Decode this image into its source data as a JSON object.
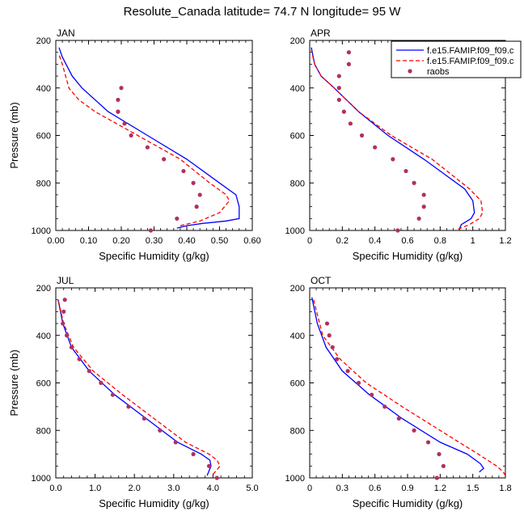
{
  "figure": {
    "title": "Resolute_Canada  latitude= 74.7 N longitude= 95 W"
  },
  "legend": {
    "placement": "top-right of APR panel",
    "items": [
      {
        "label": "f.e15.FAMIP.f09_f09.c",
        "color": "#0000ff",
        "style": "solid"
      },
      {
        "label": "f.e15.FAMIP.f09_f09.c",
        "color": "#ff0000",
        "style": "dashed"
      },
      {
        "label": "raobs",
        "color": "#b03060",
        "style": "marker"
      }
    ]
  },
  "chart_data": [
    {
      "type": "line",
      "panel_label": "JAN",
      "xlabel": "Specific Humidity (g/kg)",
      "ylabel": "Pressure (mb)",
      "xlim": [
        0,
        0.6
      ],
      "xticks": [
        "0.00",
        "0.10",
        "0.20",
        "0.30",
        "0.40",
        "0.50",
        "0.60"
      ],
      "xtick_values": [
        0,
        0.1,
        0.2,
        0.3,
        0.4,
        0.5,
        0.6
      ],
      "ylim": [
        1000,
        200
      ],
      "yticks": [
        200,
        400,
        600,
        800,
        1000
      ],
      "series": [
        {
          "key": "blue",
          "color": "#0000ff",
          "style": "solid",
          "x": [
            0.37,
            0.4,
            0.45,
            0.52,
            0.56,
            0.56,
            0.55,
            0.5,
            0.4,
            0.28,
            0.16,
            0.08,
            0.05,
            0.02,
            0.01
          ],
          "y": [
            990,
            980,
            970,
            960,
            950,
            900,
            850,
            800,
            700,
            600,
            500,
            400,
            350,
            270,
            230
          ]
        },
        {
          "key": "red",
          "color": "#ff0000",
          "style": "dashed",
          "x": [
            0.38,
            0.44,
            0.5,
            0.53,
            0.52,
            0.47,
            0.38,
            0.25,
            0.12,
            0.07,
            0.04,
            0.02,
            0.01
          ],
          "y": [
            980,
            960,
            925,
            875,
            850,
            800,
            700,
            600,
            500,
            450,
            400,
            300,
            260
          ]
        },
        {
          "key": "raobs",
          "color": "#b03060",
          "style": "marker",
          "x": [
            0.2,
            0.19,
            0.19,
            0.19,
            0.21,
            0.23,
            0.28,
            0.33,
            0.39,
            0.42,
            0.44,
            0.43,
            0.37,
            0.29
          ],
          "y": [
            400,
            450,
            500,
            500,
            550,
            600,
            650,
            700,
            750,
            800,
            850,
            900,
            950,
            1000
          ]
        }
      ]
    },
    {
      "type": "line",
      "panel_label": "APR",
      "xlabel": "Specific Humidity (g/kg)",
      "ylabel": "",
      "xlim": [
        0,
        1.2
      ],
      "xticks": [
        "0",
        "0.2",
        "0.4",
        "0.6",
        "0.8",
        "1",
        "1.2"
      ],
      "xtick_values": [
        0,
        0.2,
        0.4,
        0.6,
        0.8,
        1.0,
        1.2
      ],
      "ylim": [
        1000,
        200
      ],
      "yticks": [
        200,
        400,
        600,
        800,
        1000
      ],
      "series": [
        {
          "key": "blue",
          "color": "#0000ff",
          "style": "solid",
          "x": [
            0.92,
            0.93,
            0.99,
            1.01,
            1.0,
            0.95,
            0.7,
            0.48,
            0.3,
            0.15,
            0.07,
            0.03,
            0.01
          ],
          "y": [
            990,
            975,
            950,
            925,
            875,
            825,
            700,
            600,
            500,
            400,
            350,
            300,
            230
          ]
        },
        {
          "key": "red",
          "color": "#ff0000",
          "style": "dashed",
          "x": [
            0.91,
            0.98,
            1.04,
            1.06,
            1.05,
            0.98,
            0.75,
            0.5,
            0.3,
            0.15,
            0.07,
            0.03,
            0.01
          ],
          "y": [
            995,
            975,
            950,
            925,
            875,
            825,
            700,
            600,
            500,
            400,
            350,
            300,
            240
          ]
        },
        {
          "key": "raobs",
          "color": "#b03060",
          "style": "marker",
          "x": [
            0.24,
            0.24,
            0.18,
            0.18,
            0.18,
            0.21,
            0.25,
            0.32,
            0.4,
            0.51,
            0.59,
            0.64,
            0.7,
            0.7,
            0.67,
            0.54
          ],
          "y": [
            250,
            300,
            350,
            400,
            450,
            500,
            550,
            600,
            650,
            700,
            750,
            800,
            850,
            900,
            950,
            1000
          ]
        }
      ]
    },
    {
      "type": "line",
      "panel_label": "JUL",
      "xlabel": "Specific Humidity (g/kg)",
      "ylabel": "Pressure (mb)",
      "xlim": [
        0,
        5
      ],
      "xticks": [
        "0.0",
        "1.0",
        "2.0",
        "3.0",
        "4.0",
        "5.0"
      ],
      "xtick_values": [
        0,
        1,
        2,
        3,
        4,
        5
      ],
      "ylim": [
        1000,
        200
      ],
      "yticks": [
        200,
        400,
        600,
        800,
        1000
      ],
      "series": [
        {
          "key": "blue",
          "color": "#0000ff",
          "style": "solid",
          "x": [
            3.85,
            3.95,
            3.92,
            3.7,
            3.1,
            2.3,
            1.5,
            0.85,
            0.4,
            0.18,
            0.06
          ],
          "y": [
            990,
            950,
            925,
            900,
            850,
            750,
            650,
            550,
            450,
            350,
            250
          ]
        },
        {
          "key": "red",
          "color": "#ff0000",
          "style": "dashed",
          "x": [
            4.0,
            4.18,
            4.1,
            3.9,
            3.3,
            2.5,
            1.7,
            0.95,
            0.45,
            0.2,
            0.06
          ],
          "y": [
            985,
            950,
            925,
            900,
            850,
            750,
            650,
            550,
            450,
            350,
            250
          ]
        },
        {
          "key": "raobs",
          "color": "#b03060",
          "style": "marker",
          "x": [
            0.23,
            0.2,
            0.18,
            0.28,
            0.4,
            0.6,
            0.85,
            1.15,
            1.45,
            1.85,
            2.25,
            2.65,
            3.05,
            3.5,
            3.9,
            4.1
          ],
          "y": [
            250,
            300,
            350,
            400,
            450,
            500,
            550,
            600,
            650,
            700,
            750,
            800,
            850,
            900,
            950,
            1000
          ]
        }
      ]
    },
    {
      "type": "line",
      "panel_label": "OCT",
      "xlabel": "Specific Humidity (g/kg)",
      "ylabel": "",
      "xlim": [
        0,
        1.8
      ],
      "xticks": [
        "0",
        "0.3",
        "0.6",
        "0.9",
        "1.2",
        "1.5",
        "1.8"
      ],
      "xtick_values": [
        0,
        0.3,
        0.6,
        0.9,
        1.2,
        1.5,
        1.8
      ],
      "ylim": [
        1000,
        200
      ],
      "yticks": [
        200,
        400,
        600,
        800,
        1000
      ],
      "series": [
        {
          "key": "blue",
          "color": "#0000ff",
          "style": "solid",
          "x": [
            1.56,
            1.6,
            1.57,
            1.45,
            1.2,
            0.85,
            0.55,
            0.3,
            0.15,
            0.07,
            0.02
          ],
          "y": [
            975,
            960,
            940,
            900,
            850,
            750,
            650,
            550,
            450,
            350,
            240
          ]
        },
        {
          "key": "red",
          "color": "#ff0000",
          "style": "dashed",
          "x": [
            1.8,
            1.78,
            1.72,
            1.55,
            1.2,
            0.85,
            0.52,
            0.28,
            0.12,
            0.03
          ],
          "y": [
            990,
            975,
            950,
            900,
            800,
            700,
            600,
            500,
            400,
            240
          ]
        },
        {
          "key": "raobs",
          "color": "#b03060",
          "style": "marker",
          "x": [
            0.16,
            0.18,
            0.21,
            0.25,
            0.35,
            0.45,
            0.57,
            0.69,
            0.82,
            0.96,
            1.09,
            1.19,
            1.23,
            1.17
          ],
          "y": [
            350,
            400,
            450,
            500,
            550,
            600,
            650,
            700,
            750,
            800,
            850,
            900,
            950,
            1000
          ]
        }
      ]
    }
  ]
}
